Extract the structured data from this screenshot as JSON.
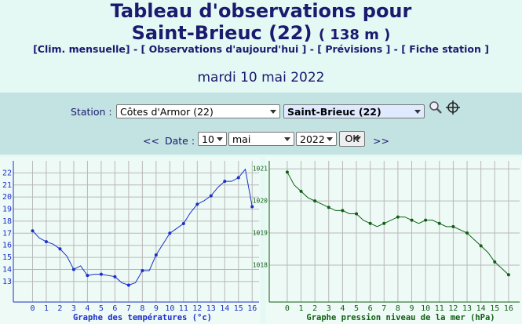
{
  "header": {
    "title": "Tableau d'observations pour",
    "station_title": "Saint-Brieuc (22)",
    "altitude": "( 138 m )",
    "links": [
      "[Clim. mensuelle]",
      "[ Observations d'aujourd'hui ]",
      "[ Prévisions ]",
      "[ Fiche station ]"
    ],
    "separator": "-"
  },
  "date": "mardi 10 mai 2022",
  "form": {
    "station_label": "Station :",
    "department": "Côtes d'Armor (22)",
    "station": "Saint-Brieuc (22)",
    "prev": "<<",
    "date_label": "Date :",
    "day": "10",
    "month": "mai",
    "year": "2022",
    "submit": "OK",
    "next": ">>"
  },
  "chart_data": [
    {
      "type": "line",
      "x_label": "Graphe des températures (°c)",
      "color": "#1a2fc8",
      "grid": true,
      "x": [
        0,
        0.5,
        1,
        1.5,
        2,
        2.5,
        3,
        3.5,
        4,
        4.5,
        5,
        5.5,
        6,
        6.5,
        7,
        7.5,
        8,
        8.5,
        9,
        9.5,
        10,
        10.5,
        11,
        11.5,
        12,
        12.5,
        13,
        13.5,
        14,
        14.5,
        15,
        15.5,
        16
      ],
      "values": [
        17.2,
        16.6,
        16.3,
        16.1,
        15.7,
        15.1,
        14.0,
        14.3,
        13.5,
        13.6,
        13.6,
        13.5,
        13.4,
        12.9,
        12.7,
        12.9,
        13.9,
        13.9,
        15.2,
        16.1,
        17.0,
        17.4,
        17.8,
        18.7,
        19.4,
        19.7,
        20.1,
        20.8,
        21.3,
        21.3,
        21.6,
        22.3,
        19.2
      ],
      "xlim": [
        -1.4,
        16.5
      ],
      "ylim": [
        11.3,
        23
      ],
      "xticks": [
        0,
        1,
        2,
        3,
        4,
        5,
        6,
        7,
        8,
        9,
        10,
        11,
        12,
        13,
        14,
        15,
        16
      ],
      "yticks": [
        13,
        14,
        15,
        16,
        17,
        18,
        19,
        20,
        21,
        22
      ]
    },
    {
      "type": "line",
      "x_label": "Graphe pression niveau de la mer (hPa)",
      "color": "#0f5f12",
      "grid": true,
      "x": [
        0,
        0.5,
        1,
        1.5,
        2,
        2.5,
        3,
        3.5,
        4,
        4.5,
        5,
        5.5,
        6,
        6.5,
        7,
        7.5,
        8,
        8.5,
        9,
        9.5,
        10,
        10.5,
        11,
        11.5,
        12,
        12.5,
        13,
        13.5,
        14,
        14.5,
        15,
        15.5,
        16
      ],
      "values": [
        1020.9,
        1020.5,
        1020.3,
        1020.1,
        1020.0,
        1019.9,
        1019.8,
        1019.7,
        1019.7,
        1019.6,
        1019.6,
        1019.4,
        1019.3,
        1019.2,
        1019.3,
        1019.4,
        1019.5,
        1019.5,
        1019.4,
        1019.3,
        1019.4,
        1019.4,
        1019.3,
        1019.2,
        1019.2,
        1019.1,
        1019.0,
        1018.8,
        1018.6,
        1018.4,
        1018.1,
        1017.9,
        1017.7
      ],
      "xlim": [
        -1.3,
        16.8
      ],
      "ylim": [
        1016.85,
        1021.25
      ],
      "xticks": [
        0,
        1,
        2,
        3,
        4,
        5,
        6,
        7,
        8,
        9,
        10,
        11,
        12,
        13,
        14,
        15,
        16
      ],
      "yticks": [
        1018,
        1019,
        1020,
        1021
      ]
    }
  ]
}
